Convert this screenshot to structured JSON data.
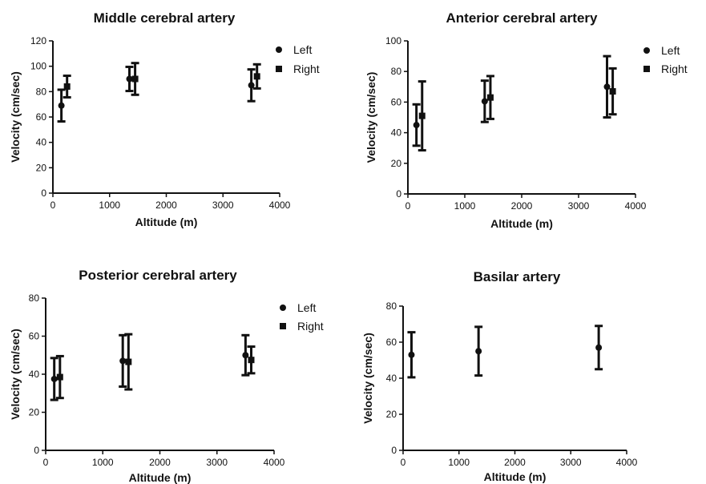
{
  "chart_data": [
    {
      "type": "scatter",
      "title": "Middle cerebral artery",
      "xlabel": "Altitude (m)",
      "ylabel": "Velocity (cm/sec)",
      "xlim": [
        0,
        4000
      ],
      "ylim": [
        0,
        120
      ],
      "xticks": [
        "0",
        "1000",
        "2000",
        "3000",
        "4000"
      ],
      "yticks": [
        "0",
        "20",
        "40",
        "60",
        "80",
        "100",
        "120"
      ],
      "legend": "right",
      "series": [
        {
          "name": "Left",
          "marker": "circle",
          "points": [
            {
              "x": 150,
              "y": 69,
              "err": 12.5
            },
            {
              "x": 1350,
              "y": 90,
              "err": 9.5
            },
            {
              "x": 3500,
              "y": 85,
              "err": 12.5
            }
          ]
        },
        {
          "name": "Right",
          "marker": "square",
          "points": [
            {
              "x": 250,
              "y": 84,
              "err": 8.5
            },
            {
              "x": 1450,
              "y": 90,
              "err": 12.5
            },
            {
              "x": 3600,
              "y": 92,
              "err": 9.5
            }
          ]
        }
      ]
    },
    {
      "type": "scatter",
      "title": "Anterior cerebral artery",
      "xlabel": "Altitude (m)",
      "ylabel": "Velocity (cm/sec)",
      "xlim": [
        0,
        4000
      ],
      "ylim": [
        0,
        100
      ],
      "xticks": [
        "0",
        "1000",
        "2000",
        "3000",
        "4000"
      ],
      "yticks": [
        "0",
        "20",
        "40",
        "60",
        "80",
        "100"
      ],
      "legend": "right",
      "series": [
        {
          "name": "Left",
          "marker": "circle",
          "points": [
            {
              "x": 150,
              "y": 45,
              "err": 13.5
            },
            {
              "x": 1350,
              "y": 60.5,
              "err": 13.5
            },
            {
              "x": 3500,
              "y": 70,
              "err": 20
            }
          ]
        },
        {
          "name": "Right",
          "marker": "square",
          "points": [
            {
              "x": 250,
              "y": 51,
              "err": 22.5
            },
            {
              "x": 1450,
              "y": 63,
              "err": 14
            }
          ]
        },
        {
          "name": "",
          "marker": "square",
          "points": [
            {
              "x": 3600,
              "y": 67,
              "err": 15
            }
          ]
        }
      ]
    },
    {
      "type": "scatter",
      "title": "Posterior cerebral artery",
      "xlabel": "Altitude (m)",
      "ylabel": "Velocity (cm/sec)",
      "xlim": [
        0,
        4000
      ],
      "ylim": [
        0,
        80
      ],
      "xticks": [
        "0",
        "1000",
        "2000",
        "3000",
        "4000"
      ],
      "yticks": [
        "0",
        "20",
        "40",
        "60",
        "80"
      ],
      "legend": "right",
      "series": [
        {
          "name": "Left",
          "marker": "circle",
          "points": [
            {
              "x": 150,
              "y": 37.5,
              "err": 11
            },
            {
              "x": 1350,
              "y": 47,
              "err": 13.5
            },
            {
              "x": 3500,
              "y": 50,
              "err": 10.5
            }
          ]
        },
        {
          "name": "Right",
          "marker": "square",
          "points": [
            {
              "x": 250,
              "y": 38.5,
              "err": 11
            },
            {
              "x": 1450,
              "y": 46.5,
              "err": 14.5
            },
            {
              "x": 3600,
              "y": 47.5,
              "err": 7
            }
          ]
        }
      ]
    },
    {
      "type": "scatter",
      "title": "Basilar artery",
      "xlabel": "Altitude (m)",
      "ylabel": "Velocity (cm/sec)",
      "xlim": [
        0,
        4000
      ],
      "ylim": [
        0,
        80
      ],
      "xticks": [
        "0",
        "1000",
        "2000",
        "3000",
        "4000"
      ],
      "yticks": [
        "0",
        "20",
        "40",
        "60",
        "80"
      ],
      "legend": "none",
      "series": [
        {
          "name": "",
          "marker": "circle",
          "points": [
            {
              "x": 150,
              "y": 53,
              "err": 12.5
            },
            {
              "x": 1350,
              "y": 55,
              "err": 13.5
            },
            {
              "x": 3500,
              "y": 57,
              "err": 12
            }
          ]
        }
      ]
    }
  ]
}
